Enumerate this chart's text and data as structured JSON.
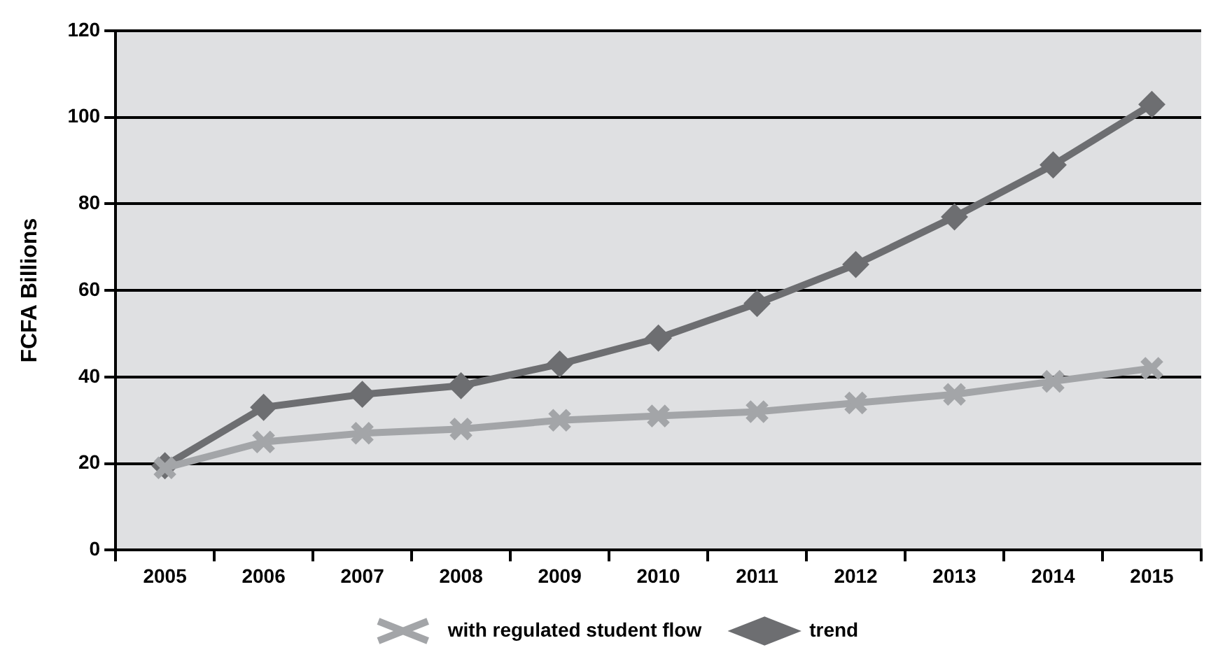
{
  "chart_data": {
    "type": "line",
    "ylabel": "FCFA Billions",
    "categories": [
      "2005",
      "2006",
      "2007",
      "2008",
      "2009",
      "2010",
      "2011",
      "2012",
      "2013",
      "2014",
      "2015"
    ],
    "series": [
      {
        "name": "trend",
        "color": "#6d6e71",
        "marker": "diamond",
        "values": [
          19.5,
          33,
          36,
          38,
          43,
          49,
          57,
          66,
          77,
          89,
          103
        ]
      },
      {
        "name": "with regulated student flow",
        "color": "#a3a5a8",
        "marker": "cross",
        "values": [
          19,
          25,
          27,
          28,
          30,
          31,
          32,
          34,
          36,
          39,
          42
        ]
      }
    ],
    "ylim": [
      0,
      120
    ],
    "yticks": [
      0,
      20,
      40,
      60,
      80,
      100,
      120
    ],
    "grid": "y",
    "legend": "bottom"
  }
}
